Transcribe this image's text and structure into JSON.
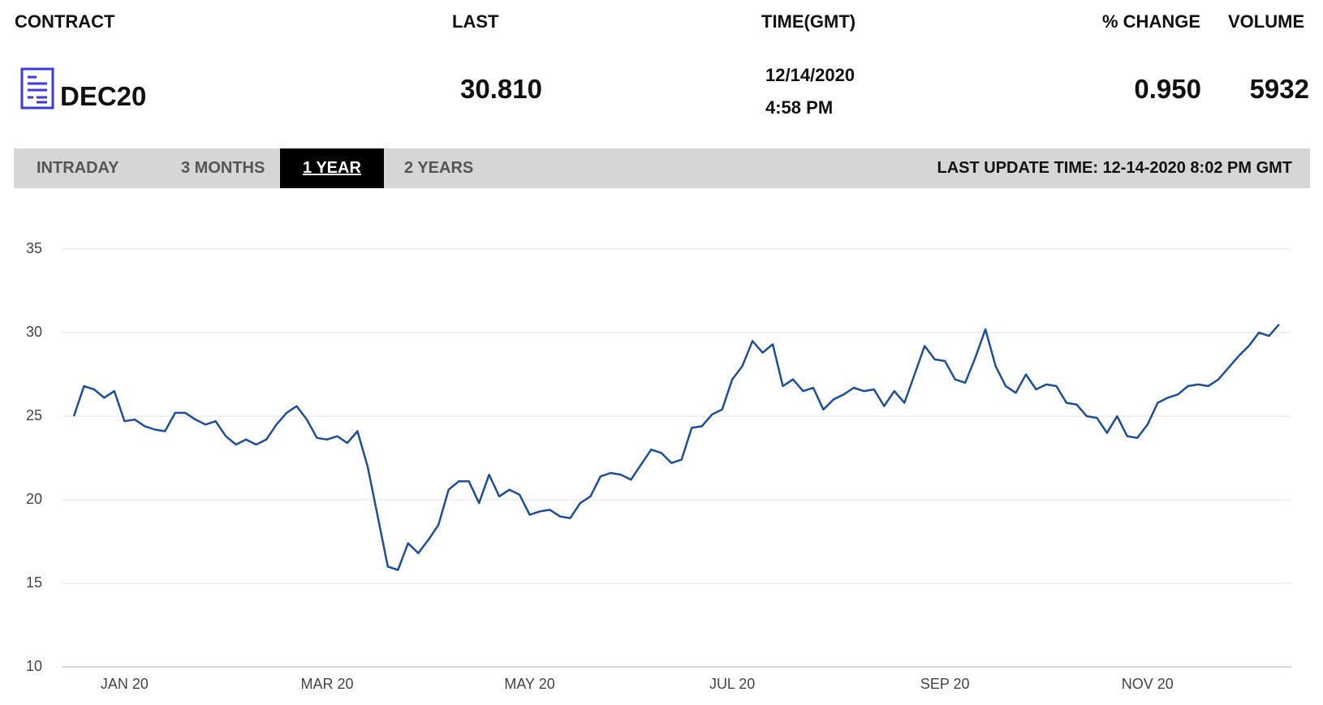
{
  "header": {
    "columns": [
      "CONTRACT",
      "LAST",
      "TIME(GMT)",
      "% CHANGE",
      "VOLUME"
    ]
  },
  "quote": {
    "contract": "DEC20",
    "last": "30.810",
    "date": "12/14/2020",
    "time": "4:58 PM",
    "change": "0.950",
    "volume": "5932"
  },
  "tabs": [
    "INTRADAY",
    "3 MONTHS",
    "1 YEAR",
    "2 YEARS"
  ],
  "active_tab": 2,
  "last_update": "LAST UPDATE TIME: 12-14-2020 8:02 PM GMT",
  "chart_data": {
    "type": "line",
    "categories": [
      null,
      null,
      null,
      null,
      null,
      "JAN 20",
      null,
      null,
      null,
      null,
      null,
      null,
      null,
      null,
      null,
      null,
      null,
      null,
      null,
      null,
      null,
      null,
      null,
      null,
      null,
      "MAR 20",
      null,
      null,
      null,
      null,
      null,
      null,
      null,
      null,
      null,
      null,
      null,
      null,
      null,
      null,
      null,
      null,
      null,
      null,
      null,
      "MAY 20",
      null,
      null,
      null,
      null,
      null,
      null,
      null,
      null,
      null,
      null,
      null,
      null,
      null,
      null,
      null,
      null,
      null,
      null,
      null,
      "JUL 20",
      null,
      null,
      null,
      null,
      null,
      null,
      null,
      null,
      null,
      null,
      null,
      null,
      null,
      null,
      null,
      null,
      null,
      null,
      null,
      null,
      "SEP 20",
      null,
      null,
      null,
      null,
      null,
      null,
      null,
      null,
      null,
      null,
      null,
      null,
      null,
      null,
      null,
      null,
      null,
      null,
      null,
      "NOV 20",
      null,
      null,
      null,
      null,
      null,
      null,
      null,
      null,
      null,
      null,
      null,
      null,
      null
    ],
    "values": [
      25.0,
      26.8,
      26.6,
      26.1,
      26.5,
      24.7,
      24.8,
      24.4,
      24.2,
      24.1,
      25.2,
      25.2,
      24.8,
      24.5,
      24.7,
      23.8,
      23.3,
      23.6,
      23.3,
      23.6,
      24.5,
      25.2,
      25.6,
      24.8,
      23.7,
      23.6,
      23.8,
      23.4,
      24.1,
      22.0,
      19.0,
      16.0,
      15.8,
      17.4,
      16.8,
      17.6,
      18.5,
      20.6,
      21.1,
      21.1,
      19.8,
      21.5,
      20.2,
      20.6,
      20.3,
      19.1,
      19.3,
      19.4,
      19.0,
      18.9,
      19.8,
      20.2,
      21.4,
      21.6,
      21.5,
      21.2,
      22.1,
      23.0,
      22.8,
      22.2,
      22.4,
      24.3,
      24.4,
      25.1,
      25.4,
      27.2,
      28.0,
      29.5,
      28.8,
      29.3,
      26.8,
      27.2,
      26.5,
      26.7,
      25.4,
      26.0,
      26.3,
      26.7,
      26.5,
      26.6,
      25.6,
      26.5,
      25.8,
      27.5,
      29.2,
      28.4,
      28.3,
      27.2,
      27.0,
      28.5,
      30.2,
      28.0,
      26.8,
      26.4,
      27.5,
      26.6,
      26.9,
      26.8,
      25.8,
      25.7,
      25.0,
      24.9,
      24.0,
      25.0,
      23.8,
      23.7,
      24.5,
      25.8,
      26.1,
      26.3,
      26.8,
      26.9,
      26.8,
      27.2,
      27.9,
      28.6,
      29.2,
      30.0,
      29.8,
      30.5
    ],
    "color": "#1f4e99",
    "ylim": [
      10,
      35
    ],
    "yticks": [
      10,
      15,
      20,
      25,
      30,
      35
    ],
    "grid": true
  }
}
